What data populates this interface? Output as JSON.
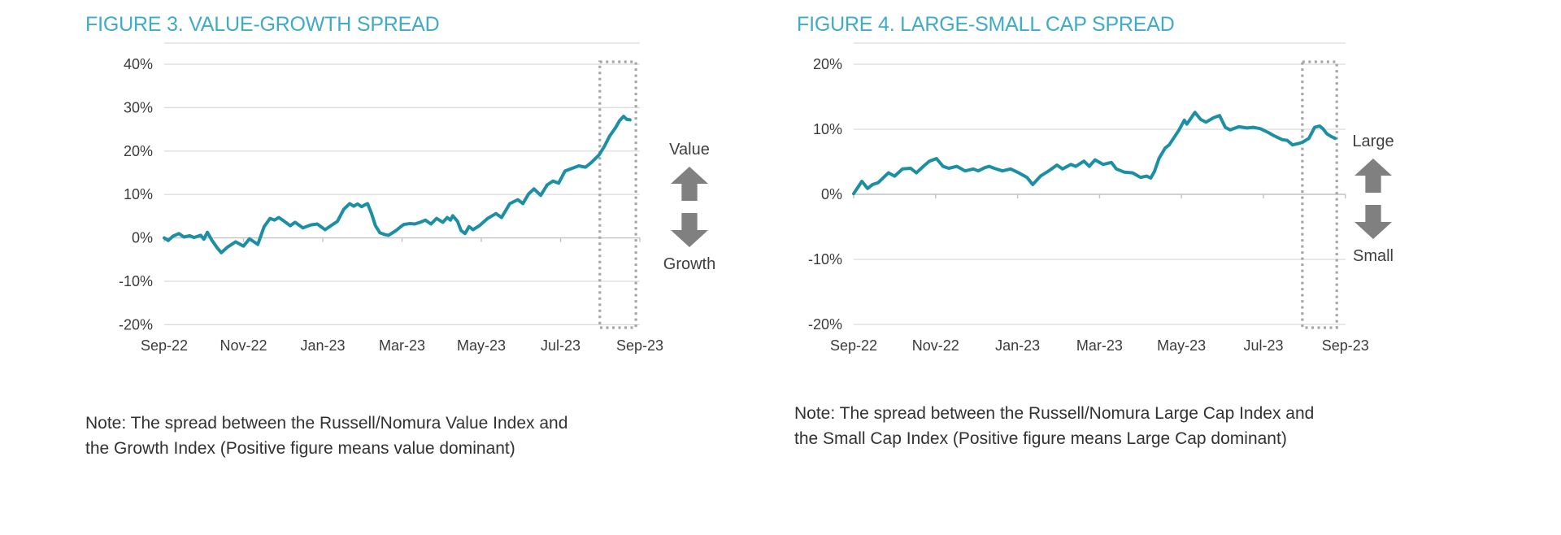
{
  "page": {
    "background": "#ffffff"
  },
  "colors": {
    "title": "#3facc6",
    "line": "#1d8fa4",
    "grid": "#d9d9d9",
    "axis": "#c2c2c2",
    "tick_label": "#3b3b3b",
    "note_text": "#323232",
    "annotation_text": "#3f3f3f",
    "arrow": "#808080",
    "highlight_box": "#a6a6a6"
  },
  "figures": [
    {
      "title": "FIGURE 3. VALUE-GROWTH SPREAD",
      "note": "Note: The spread between the Russell/Nomura Value Index and\nthe Growth Index (Positive figure means value dominant)",
      "annotation": {
        "up_label": "Value",
        "down_label": "Growth"
      }
    },
    {
      "title": "FIGURE 4. LARGE-SMALL CAP SPREAD",
      "note": "Note: The spread between the Russell/Nomura Large Cap Index and\nthe Small Cap Index (Positive figure means Large Cap dominant)",
      "annotation": {
        "up_label": "Large",
        "down_label": "Small"
      }
    }
  ],
  "chart_data": [
    {
      "type": "line",
      "title": "FIGURE 3. VALUE-GROWTH SPREAD",
      "x_unit": "months since Sep-2022",
      "x_tick_labels": [
        "Sep-22",
        "Nov-22",
        "Jan-23",
        "Mar-23",
        "May-23",
        "Jul-23",
        "Sep-23"
      ],
      "x_tick_months": [
        0,
        2,
        4,
        6,
        8,
        10,
        12
      ],
      "y_ticks": [
        40,
        30,
        20,
        10,
        0,
        -10,
        -20
      ],
      "ylim": [
        -20,
        40
      ],
      "y_tick_suffix": "%",
      "grid": "horizontal",
      "legend": "none",
      "line_color": "#1d8fa4",
      "highlight_box_months": [
        10.99,
        11.9
      ],
      "annotations": {
        "up": "Value",
        "down": "Growth"
      },
      "series": [
        {
          "name": "Value minus Growth spread (%)",
          "points": [
            [
              0,
              0
            ],
            [
              0.1,
              -0.6
            ],
            [
              0.22,
              0.4
            ],
            [
              0.37,
              1.0
            ],
            [
              0.5,
              0.2
            ],
            [
              0.64,
              0.5
            ],
            [
              0.75,
              0.1
            ],
            [
              0.92,
              0.6
            ],
            [
              1.0,
              -0.3
            ],
            [
              1.09,
              1.3
            ],
            [
              1.2,
              -0.5
            ],
            [
              1.33,
              -2.2
            ],
            [
              1.44,
              -3.4
            ],
            [
              1.6,
              -2.1
            ],
            [
              1.8,
              -0.9
            ],
            [
              2.0,
              -1.9
            ],
            [
              2.15,
              -0.2
            ],
            [
              2.36,
              -1.5
            ],
            [
              2.52,
              2.6
            ],
            [
              2.67,
              4.5
            ],
            [
              2.78,
              4.1
            ],
            [
              2.89,
              4.7
            ],
            [
              3.0,
              4.0
            ],
            [
              3.18,
              2.8
            ],
            [
              3.3,
              3.6
            ],
            [
              3.5,
              2.3
            ],
            [
              3.7,
              3.0
            ],
            [
              3.86,
              3.2
            ],
            [
              4.06,
              1.9
            ],
            [
              4.22,
              2.9
            ],
            [
              4.37,
              3.8
            ],
            [
              4.53,
              6.6
            ],
            [
              4.68,
              7.9
            ],
            [
              4.78,
              7.3
            ],
            [
              4.88,
              7.8
            ],
            [
              4.98,
              7.2
            ],
            [
              5.08,
              7.7
            ],
            [
              5.13,
              7.9
            ],
            [
              5.23,
              5.6
            ],
            [
              5.33,
              2.8
            ],
            [
              5.44,
              1.2
            ],
            [
              5.55,
              0.8
            ],
            [
              5.66,
              0.6
            ],
            [
              5.85,
              1.7
            ],
            [
              5.97,
              2.6
            ],
            [
              6.05,
              3.1
            ],
            [
              6.2,
              3.3
            ],
            [
              6.32,
              3.2
            ],
            [
              6.46,
              3.6
            ],
            [
              6.59,
              4.1
            ],
            [
              6.73,
              3.2
            ],
            [
              6.87,
              4.5
            ],
            [
              7.03,
              3.6
            ],
            [
              7.14,
              4.7
            ],
            [
              7.22,
              4.1
            ],
            [
              7.28,
              5.1
            ],
            [
              7.4,
              3.8
            ],
            [
              7.49,
              1.7
            ],
            [
              7.59,
              1.0
            ],
            [
              7.69,
              2.6
            ],
            [
              7.79,
              1.9
            ],
            [
              7.95,
              2.8
            ],
            [
              8.16,
              4.5
            ],
            [
              8.37,
              5.6
            ],
            [
              8.51,
              4.7
            ],
            [
              8.72,
              7.9
            ],
            [
              8.92,
              8.8
            ],
            [
              9.05,
              7.9
            ],
            [
              9.19,
              10.1
            ],
            [
              9.33,
              11.3
            ],
            [
              9.5,
              9.8
            ],
            [
              9.66,
              12.2
            ],
            [
              9.81,
              13.1
            ],
            [
              9.95,
              12.6
            ],
            [
              10.11,
              15.4
            ],
            [
              10.28,
              16.0
            ],
            [
              10.46,
              16.6
            ],
            [
              10.63,
              16.3
            ],
            [
              10.77,
              17.3
            ],
            [
              10.97,
              19.1
            ],
            [
              11.1,
              21.0
            ],
            [
              11.24,
              23.5
            ],
            [
              11.38,
              25.3
            ],
            [
              11.49,
              27.0
            ],
            [
              11.59,
              28.0
            ],
            [
              11.67,
              27.3
            ],
            [
              11.75,
              27.2
            ]
          ]
        }
      ]
    },
    {
      "type": "line",
      "title": "FIGURE 4. LARGE-SMALL CAP SPREAD",
      "x_unit": "months since Sep-2022",
      "x_tick_labels": [
        "Sep-22",
        "Nov-22",
        "Jan-23",
        "Mar-23",
        "May-23",
        "Jul-23",
        "Sep-23"
      ],
      "x_tick_months": [
        0,
        2,
        4,
        6,
        8,
        10,
        12
      ],
      "y_ticks": [
        20,
        10,
        0,
        -10,
        -20
      ],
      "ylim": [
        -20,
        20
      ],
      "y_tick_suffix": "%",
      "grid": "horizontal",
      "legend": "none",
      "line_color": "#1d8fa4",
      "highlight_box_months": [
        10.95,
        11.79
      ],
      "annotations": {
        "up": "Large",
        "down": "Small"
      },
      "series": [
        {
          "name": "Large Cap minus Small Cap spread (%)",
          "points": [
            [
              0,
              0.1
            ],
            [
              0.2,
              2.0
            ],
            [
              0.34,
              0.9
            ],
            [
              0.46,
              1.5
            ],
            [
              0.6,
              1.8
            ],
            [
              0.85,
              3.3
            ],
            [
              1.0,
              2.8
            ],
            [
              1.19,
              3.9
            ],
            [
              1.39,
              4.0
            ],
            [
              1.53,
              3.3
            ],
            [
              1.7,
              4.3
            ],
            [
              1.85,
              5.1
            ],
            [
              2.02,
              5.5
            ],
            [
              2.18,
              4.3
            ],
            [
              2.32,
              4.0
            ],
            [
              2.52,
              4.3
            ],
            [
              2.72,
              3.6
            ],
            [
              2.92,
              3.9
            ],
            [
              3.04,
              3.6
            ],
            [
              3.2,
              4.1
            ],
            [
              3.31,
              4.3
            ],
            [
              3.43,
              4.0
            ],
            [
              3.63,
              3.6
            ],
            [
              3.83,
              3.9
            ],
            [
              4.03,
              3.3
            ],
            [
              4.23,
              2.6
            ],
            [
              4.37,
              1.5
            ],
            [
              4.56,
              2.8
            ],
            [
              4.76,
              3.6
            ],
            [
              4.96,
              4.5
            ],
            [
              5.1,
              3.9
            ],
            [
              5.3,
              4.6
            ],
            [
              5.42,
              4.3
            ],
            [
              5.62,
              5.1
            ],
            [
              5.75,
              4.3
            ],
            [
              5.89,
              5.3
            ],
            [
              6.09,
              4.6
            ],
            [
              6.29,
              4.9
            ],
            [
              6.41,
              3.9
            ],
            [
              6.61,
              3.4
            ],
            [
              6.81,
              3.3
            ],
            [
              7.0,
              2.6
            ],
            [
              7.15,
              2.8
            ],
            [
              7.25,
              2.5
            ],
            [
              7.34,
              3.5
            ],
            [
              7.45,
              5.5
            ],
            [
              7.6,
              7.1
            ],
            [
              7.7,
              7.6
            ],
            [
              7.94,
              9.9
            ],
            [
              8.07,
              11.4
            ],
            [
              8.13,
              10.8
            ],
            [
              8.33,
              12.6
            ],
            [
              8.47,
              11.5
            ],
            [
              8.6,
              11.1
            ],
            [
              8.79,
              11.8
            ],
            [
              8.93,
              12.1
            ],
            [
              9.07,
              10.3
            ],
            [
              9.19,
              9.9
            ],
            [
              9.4,
              10.4
            ],
            [
              9.6,
              10.2
            ],
            [
              9.75,
              10.3
            ],
            [
              9.92,
              10.1
            ],
            [
              10.12,
              9.5
            ],
            [
              10.26,
              9.0
            ],
            [
              10.46,
              8.4
            ],
            [
              10.58,
              8.3
            ],
            [
              10.71,
              7.6
            ],
            [
              10.85,
              7.8
            ],
            [
              10.95,
              8.0
            ],
            [
              11.11,
              8.6
            ],
            [
              11.25,
              10.3
            ],
            [
              11.37,
              10.5
            ],
            [
              11.45,
              10.1
            ],
            [
              11.55,
              9.3
            ],
            [
              11.65,
              8.9
            ],
            [
              11.75,
              8.6
            ]
          ]
        }
      ]
    }
  ]
}
